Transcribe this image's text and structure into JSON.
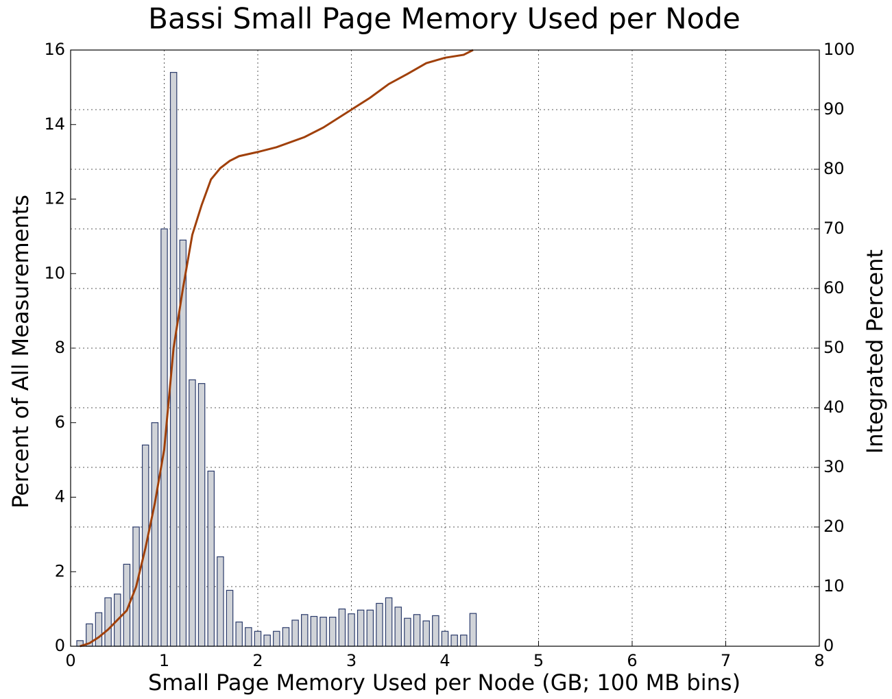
{
  "chart_data": {
    "type": "bar",
    "title": "Bassi Small Page Memory Used per Node",
    "xlabel": "Small Page Memory Used per Node (GB; 100 MB bins)",
    "ylabel": "Percent of All Measurements",
    "y2label": "Integrated Percent",
    "x": [
      0.1,
      0.2,
      0.3,
      0.4,
      0.5,
      0.6,
      0.7,
      0.8,
      0.9,
      1.0,
      1.1,
      1.2,
      1.3,
      1.4,
      1.5,
      1.6,
      1.7,
      1.8,
      1.9,
      2.0,
      2.1,
      2.2,
      2.3,
      2.4,
      2.5,
      2.6,
      2.7,
      2.8,
      2.9,
      3.0,
      3.1,
      3.2,
      3.3,
      3.4,
      3.5,
      3.6,
      3.7,
      3.8,
      3.9,
      4.0,
      4.1,
      4.2,
      4.3
    ],
    "values": [
      0.15,
      0.6,
      0.9,
      1.3,
      1.4,
      2.2,
      3.2,
      5.4,
      6.0,
      11.2,
      15.4,
      10.9,
      7.15,
      7.05,
      4.7,
      2.4,
      1.5,
      0.65,
      0.5,
      0.4,
      0.3,
      0.4,
      0.5,
      0.7,
      0.85,
      0.8,
      0.78,
      0.78,
      1.0,
      0.87,
      0.97,
      0.97,
      1.15,
      1.3,
      1.05,
      0.75,
      0.85,
      0.68,
      0.82,
      0.4,
      0.3,
      0.3,
      0.88
    ],
    "color": "#d0d3d8",
    "edge_color": "#2a3a6a",
    "line": {
      "axis": "y2",
      "color": "#a0400a",
      "x": [
        0.1,
        0.2,
        0.3,
        0.4,
        0.5,
        0.6,
        0.7,
        0.8,
        0.9,
        1.0,
        1.1,
        1.2,
        1.3,
        1.4,
        1.5,
        1.6,
        1.7,
        1.8,
        2.0,
        2.2,
        2.5,
        2.7,
        3.0,
        3.2,
        3.4,
        3.6,
        3.8,
        4.0,
        4.2,
        4.3
      ],
      "values": [
        0,
        0.5,
        1.5,
        2.8,
        4.4,
        6,
        10,
        16.5,
        24,
        33,
        50,
        60,
        69,
        74,
        78.3,
        80.2,
        81.4,
        82.2,
        82.9,
        83.7,
        85.4,
        87,
        90,
        92,
        94.3,
        96,
        97.8,
        98.7,
        99.2,
        100
      ]
    },
    "xlim": [
      0,
      8
    ],
    "xticks": [
      0,
      1,
      2,
      3,
      4,
      5,
      6,
      7,
      8
    ],
    "ylim": [
      0,
      16
    ],
    "yticks": [
      0,
      2,
      4,
      6,
      8,
      10,
      12,
      14,
      16
    ],
    "y2lim": [
      0,
      100
    ],
    "y2ticks": [
      0,
      10,
      20,
      30,
      40,
      50,
      60,
      70,
      80,
      90,
      100
    ],
    "grid": true,
    "ylabel_color": "#1f2f6e",
    "y2label_color": "#a04010"
  }
}
